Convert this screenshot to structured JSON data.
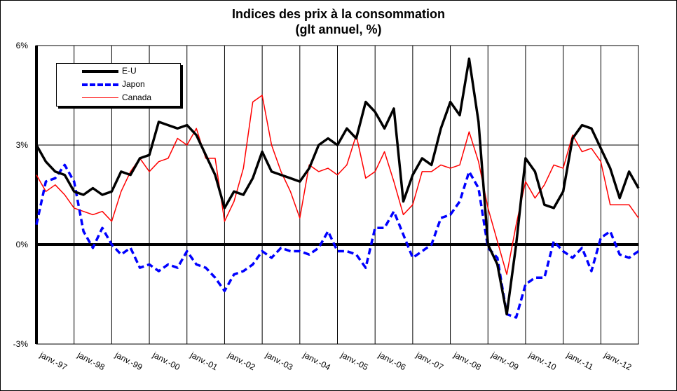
{
  "chart_data": {
    "type": "line",
    "title": "Indices des prix à la consommation",
    "subtitle": "(glt annuel, %)",
    "xlabel": "",
    "ylabel": "",
    "ylim": [
      -3,
      6
    ],
    "yticks": [
      -3,
      0,
      3,
      6
    ],
    "ytick_labels": [
      "-3%",
      "0%",
      "3%",
      "6%"
    ],
    "x_start_year": 1997,
    "x_end_year": 2013,
    "x_step": "quarterly",
    "xtick_labels": [
      "janv.-97",
      "janv.-98",
      "janv.-99",
      "janv.-00",
      "janv.-01",
      "janv.-02",
      "janv.-03",
      "janv.-04",
      "janv.-05",
      "janv.-06",
      "janv.-07",
      "janv.-08",
      "janv.-09",
      "janv.-10",
      "janv.-11",
      "janv.-12"
    ],
    "grid": true,
    "legend_position": "top-left",
    "series": [
      {
        "name": "E-U",
        "color": "#000000",
        "style": "solid-thick",
        "values": [
          3.0,
          2.5,
          2.2,
          2.1,
          1.6,
          1.5,
          1.7,
          1.5,
          1.6,
          2.2,
          2.1,
          2.6,
          2.7,
          3.7,
          3.6,
          3.5,
          3.6,
          3.3,
          2.7,
          2.1,
          1.1,
          1.6,
          1.5,
          2.0,
          2.8,
          2.2,
          2.1,
          2.0,
          1.9,
          2.3,
          3.0,
          3.2,
          3.0,
          3.5,
          3.2,
          4.3,
          4.0,
          3.5,
          4.1,
          1.3,
          2.1,
          2.6,
          2.4,
          3.5,
          4.3,
          3.9,
          5.6,
          3.7,
          0.0,
          -0.6,
          -2.1,
          0.0,
          2.6,
          2.2,
          1.2,
          1.1,
          1.6,
          3.2,
          3.6,
          3.5,
          2.9,
          2.3,
          1.4,
          2.2,
          1.7
        ]
      },
      {
        "name": "Japon",
        "color": "#0000FF",
        "style": "dashed",
        "values": [
          0.6,
          1.9,
          2.0,
          2.4,
          1.9,
          0.4,
          -0.1,
          0.5,
          0.0,
          -0.3,
          -0.1,
          -0.7,
          -0.6,
          -0.8,
          -0.6,
          -0.7,
          -0.2,
          -0.6,
          -0.7,
          -1.0,
          -1.4,
          -0.9,
          -0.8,
          -0.6,
          -0.2,
          -0.4,
          -0.1,
          -0.2,
          -0.2,
          -0.3,
          -0.1,
          0.4,
          -0.2,
          -0.2,
          -0.3,
          -0.7,
          0.5,
          0.5,
          1.0,
          0.3,
          -0.4,
          -0.2,
          0.0,
          0.8,
          0.9,
          1.3,
          2.2,
          1.7,
          -0.1,
          -0.4,
          -2.1,
          -2.2,
          -1.2,
          -1.0,
          -1.0,
          0.1,
          -0.2,
          -0.4,
          -0.1,
          -0.8,
          0.2,
          0.4,
          -0.3,
          -0.4,
          -0.2
        ]
      },
      {
        "name": "Canada",
        "color": "#FF0000",
        "style": "solid-thin",
        "values": [
          2.1,
          1.6,
          1.8,
          1.5,
          1.1,
          1.0,
          0.9,
          1.0,
          0.7,
          1.6,
          2.2,
          2.6,
          2.2,
          2.5,
          2.6,
          3.2,
          3.0,
          3.5,
          2.6,
          2.6,
          0.7,
          1.3,
          2.3,
          4.3,
          4.5,
          3.0,
          2.2,
          1.6,
          0.8,
          2.4,
          2.2,
          2.3,
          2.1,
          2.4,
          3.3,
          2.0,
          2.2,
          2.8,
          1.9,
          0.9,
          1.2,
          2.2,
          2.2,
          2.4,
          2.3,
          2.4,
          3.4,
          2.5,
          1.1,
          0.1,
          -0.9,
          0.6,
          1.9,
          1.4,
          1.8,
          2.4,
          2.3,
          3.3,
          2.8,
          2.9,
          2.5,
          1.2,
          1.2,
          1.2,
          0.8
        ]
      }
    ]
  }
}
